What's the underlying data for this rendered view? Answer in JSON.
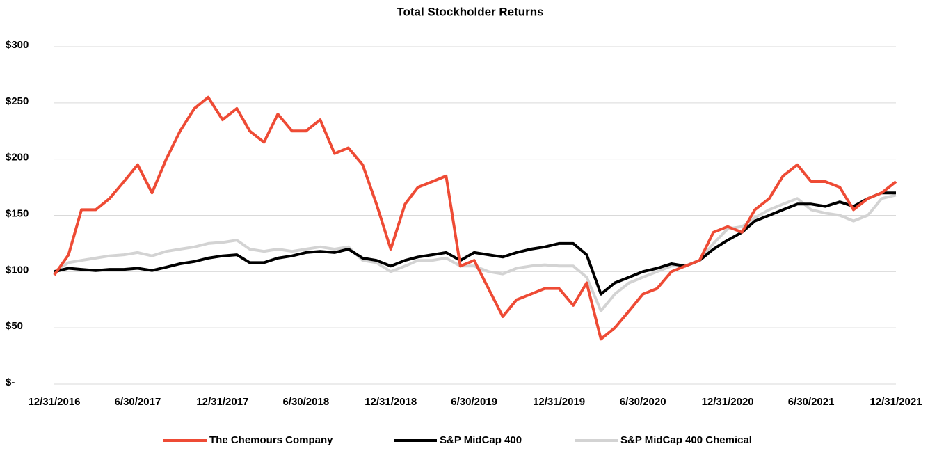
{
  "chart_data": {
    "type": "line",
    "title": "Total Stockholder Returns",
    "x": [
      "12/31/2016",
      "1/31/2017",
      "2/28/2017",
      "3/31/2017",
      "4/30/2017",
      "5/31/2017",
      "6/30/2017",
      "7/31/2017",
      "8/31/2017",
      "9/30/2017",
      "10/31/2017",
      "11/30/2017",
      "12/31/2017",
      "1/31/2018",
      "2/28/2018",
      "3/31/2018",
      "4/30/2018",
      "5/31/2018",
      "6/30/2018",
      "7/31/2018",
      "8/31/2018",
      "9/30/2018",
      "10/31/2018",
      "11/30/2018",
      "12/31/2018",
      "1/31/2019",
      "2/28/2019",
      "3/31/2019",
      "4/30/2019",
      "5/31/2019",
      "6/30/2019",
      "7/31/2019",
      "8/31/2019",
      "9/30/2019",
      "10/31/2019",
      "11/30/2019",
      "12/31/2019",
      "1/31/2020",
      "2/29/2020",
      "3/31/2020",
      "4/30/2020",
      "5/31/2020",
      "6/30/2020",
      "7/31/2020",
      "8/31/2020",
      "9/30/2020",
      "10/31/2020",
      "11/30/2020",
      "12/31/2020",
      "1/31/2021",
      "2/28/2021",
      "3/31/2021",
      "4/30/2021",
      "5/31/2021",
      "6/30/2021",
      "7/31/2021",
      "8/31/2021",
      "9/30/2021",
      "10/31/2021",
      "11/30/2021",
      "12/31/2021"
    ],
    "series": [
      {
        "name": "The Chemours Company",
        "color": "#ee4b35",
        "values": [
          97,
          115,
          155,
          155,
          165,
          180,
          195,
          170,
          200,
          225,
          245,
          255,
          235,
          245,
          225,
          215,
          240,
          225,
          225,
          235,
          205,
          210,
          195,
          160,
          120,
          160,
          175,
          180,
          185,
          105,
          110,
          85,
          60,
          75,
          80,
          85,
          85,
          70,
          90,
          40,
          50,
          65,
          80,
          85,
          100,
          105,
          110,
          135,
          140,
          135,
          155,
          165,
          185,
          195,
          180,
          180,
          175,
          155,
          165,
          170,
          180
        ]
      },
      {
        "name": "S&P MidCap 400",
        "color": "#000000",
        "values": [
          100,
          103,
          102,
          101,
          102,
          102,
          103,
          101,
          104,
          107,
          109,
          112,
          114,
          115,
          108,
          108,
          112,
          114,
          117,
          118,
          117,
          120,
          112,
          110,
          105,
          110,
          113,
          115,
          117,
          110,
          117,
          115,
          113,
          117,
          120,
          122,
          125,
          125,
          115,
          80,
          90,
          95,
          100,
          103,
          107,
          105,
          110,
          120,
          128,
          135,
          145,
          150,
          155,
          160,
          160,
          158,
          162,
          158,
          165,
          170,
          170
        ]
      },
      {
        "name": "S&P MidCap 400 Chemical",
        "color": "#d3d3d3",
        "values": [
          100,
          108,
          110,
          112,
          114,
          115,
          117,
          114,
          118,
          120,
          122,
          125,
          126,
          128,
          120,
          118,
          120,
          118,
          120,
          122,
          120,
          122,
          110,
          108,
          100,
          105,
          110,
          110,
          112,
          105,
          105,
          100,
          98,
          103,
          105,
          106,
          105,
          105,
          95,
          65,
          80,
          90,
          95,
          100,
          105,
          105,
          110,
          125,
          138,
          140,
          148,
          155,
          160,
          165,
          155,
          152,
          150,
          145,
          150,
          165,
          168
        ]
      }
    ],
    "xlim": [
      "12/31/2016",
      "12/31/2021"
    ],
    "xticks": [
      "12/31/2016",
      "6/30/2017",
      "12/31/2017",
      "6/30/2018",
      "12/31/2018",
      "6/30/2019",
      "12/31/2019",
      "6/30/2020",
      "12/31/2020",
      "6/30/2021",
      "12/31/2021"
    ],
    "ylim": [
      0,
      300
    ],
    "yticks": [
      {
        "value": 0,
        "label": "$-"
      },
      {
        "value": 50,
        "label": "$50"
      },
      {
        "value": 100,
        "label": "$100"
      },
      {
        "value": 150,
        "label": "$150"
      },
      {
        "value": 200,
        "label": "$200"
      },
      {
        "value": 250,
        "label": "$250"
      },
      {
        "value": 300,
        "label": "$300"
      }
    ],
    "grid": true,
    "legend": "bottom"
  }
}
